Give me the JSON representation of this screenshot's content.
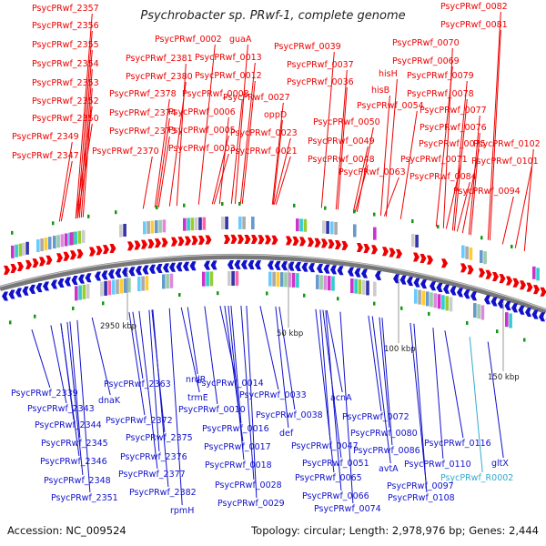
{
  "title": "Psychrobacter sp. PRwf-1, complete genome",
  "footer": {
    "accession": "Accession: NC_009524",
    "topology": "Topology: circular; Length: 2,978,976 bp; Genes: 2,444"
  },
  "colors": {
    "forward": "#ee0000",
    "reverse": "#1111cc",
    "rna": "#33aacc",
    "backbone": "#777777",
    "tick": "#119911"
  },
  "scale_labels": [
    "2950 kbp",
    "50 kbp",
    "100 kbp",
    "150 kbp"
  ],
  "top_labels": [
    "PsycPRwf_2357",
    "PsycPRwf_2356",
    "PsycPRwf_2355",
    "PsycPRwf_2354",
    "PsycPRwf_2353",
    "PsycPRwf_2352",
    "PsycPRwf_2350",
    "PsycPRwf_2349",
    "PsycPRwf_2347",
    "PsycPRwf_2381",
    "PsycPRwf_2380",
    "PsycPRwf_2378",
    "PsycPRwf_2374",
    "PsycPRwf_2373",
    "PsycPRwf_2370",
    "PsycPRwf_0002",
    "PsycPRwf_0013",
    "PsycPRwf_0012",
    "PsycPRwf_0008",
    "PsycPRwf_0006",
    "PsycPRwf_0005",
    "PsycPRwf_0003",
    "guaA",
    "PsycPRwf_0027",
    "oppD",
    "PsycPRwf_0023",
    "PsycPRwf_0021",
    "PsycPRwf_0039",
    "PsycPRwf_0037",
    "PsycPRwf_0036",
    "PsycPRwf_0050",
    "PsycPRwf_0049",
    "PsycPRwf_0048",
    "hisH",
    "hisB",
    "PsycPRwf_0054",
    "PsycPRwf_0063",
    "PsycPRwf_0082",
    "PsycPRwf_0081",
    "PsycPRwf_0070",
    "PsycPRwf_0069",
    "PsycPRwf_0079",
    "PsycPRwf_0078",
    "PsycPRwf_0077",
    "PsycPRwf_0076",
    "PsycPRwf_0075",
    "PsycPRwf_0071",
    "PsycPRwf_0084",
    "PsycPRwf_0094",
    "PsycPRwf_0102",
    "PsycPRwf_0101"
  ],
  "bottom_labels": [
    "PsycPRwf_2339",
    "PsycPRwf_2343",
    "PsycPRwf_2344",
    "PsycPRwf_2345",
    "PsycPRwf_2346",
    "PsycPRwf_2348",
    "PsycPRwf_2351",
    "PsycPRwf_2363",
    "dnaK",
    "PsycPRwf_2372",
    "PsycPRwf_2375",
    "PsycPRwf_2376",
    "PsycPRwf_2377",
    "PsycPRwf_2382",
    "rpmH",
    "nrdR",
    "trmE",
    "PsycPRwf_0014",
    "PsycPRwf_0010",
    "PsycPRwf_0016",
    "PsycPRwf_0017",
    "PsycPRwf_0018",
    "PsycPRwf_0028",
    "PsycPRwf_0029",
    "PsycPRwf_0033",
    "PsycPRwf_0038",
    "def",
    "PsycPRwf_0047",
    "PsycPRwf_0051",
    "acnA",
    "PsycPRwf_0072",
    "PsycPRwf_0080",
    "PsycPRwf_0065",
    "PsycPRwf_0066",
    "PsycPRwf_0074",
    "PsycPRwf_0086",
    "avtA",
    "PsycPRwf_0097",
    "PsycPRwf_0108",
    "PsycPRwf_0110",
    "PsycPRwf_0116",
    "gltX",
    "PsycPRwf_R0002"
  ]
}
